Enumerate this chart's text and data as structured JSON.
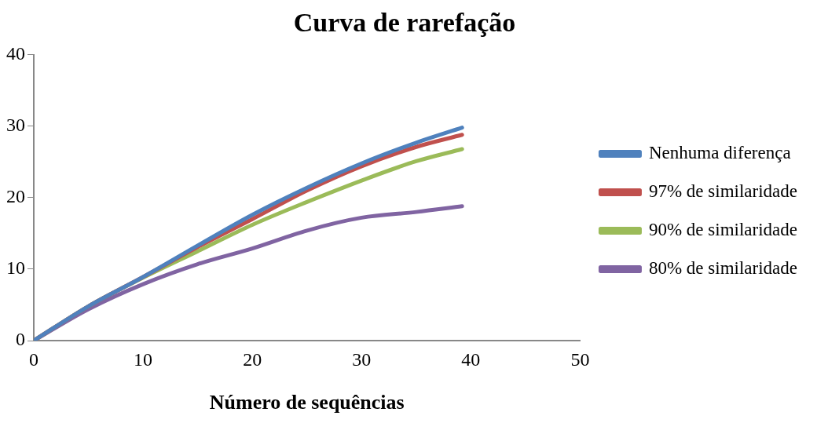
{
  "chart_data": {
    "type": "line",
    "title": "Curva de rarefação",
    "xlabel": "Número de sequências",
    "x": [
      0,
      5,
      10,
      15,
      20,
      25,
      30,
      35,
      39.2
    ],
    "series": [
      {
        "name": "Nenhuma diferença",
        "color": "#4f81bd",
        "values": [
          0,
          4.8,
          8.9,
          13.3,
          17.6,
          21.4,
          24.8,
          27.7,
          29.8
        ]
      },
      {
        "name": "97% de similaridade",
        "color": "#c0504d",
        "values": [
          0,
          4.8,
          8.9,
          13.1,
          17.0,
          21.0,
          24.4,
          27.1,
          28.8
        ]
      },
      {
        "name": "90% de similaridade",
        "color": "#9bbb59",
        "values": [
          0,
          4.8,
          8.8,
          12.5,
          16.2,
          19.4,
          22.4,
          25.1,
          26.8
        ]
      },
      {
        "name": "80% de similaridade",
        "color": "#8064a2",
        "values": [
          0,
          4.4,
          7.9,
          10.7,
          12.9,
          15.4,
          17.2,
          18.0,
          18.8
        ]
      }
    ],
    "xlim": [
      0,
      50
    ],
    "xticks": [
      0,
      10,
      20,
      30,
      40,
      50
    ],
    "ylim": [
      0,
      40
    ],
    "yticks": [
      0,
      10,
      20,
      30,
      40
    ],
    "grid": false,
    "legend": "right",
    "marker": "none",
    "line_style": "solid"
  }
}
